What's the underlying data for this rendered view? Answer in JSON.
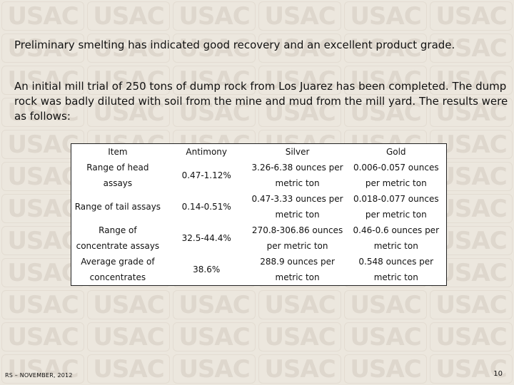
{
  "watermark": "USAC",
  "paragraphs": {
    "p1": "Preliminary smelting has indicated good recovery and an excellent product grade.",
    "p2": "An initial mill trial of 250 tons of dump rock from Los Juarez has been completed. The dump rock was badly diluted with soil from the mine and mud from the mill yard. The results were as follows:"
  },
  "table": {
    "headers": [
      "Item",
      "Antimony",
      "Silver",
      "Gold"
    ],
    "rows": [
      [
        "Range of head assays",
        "0.47-1.12%",
        "3.26-6.38 ounces per metric ton",
        "0.006-0.057 ounces per metric ton"
      ],
      [
        "Range of tail assays",
        "0.14-0.51%",
        "0.47-3.33 ounces per metric ton",
        "0.018-0.077 ounces per metric ton"
      ],
      [
        "Range of concentrate assays",
        "32.5-44.4%",
        "270.8-306.86 ounces per metric ton",
        "0.46-0.6 ounces per metric ton"
      ],
      [
        "Average grade of concentrates",
        "38.6%",
        "288.9 ounces per metric ton",
        "0.548 ounces per metric ton"
      ]
    ]
  },
  "footer": {
    "left": "RS – NOVEMBER, 2012",
    "page_number": "10"
  }
}
